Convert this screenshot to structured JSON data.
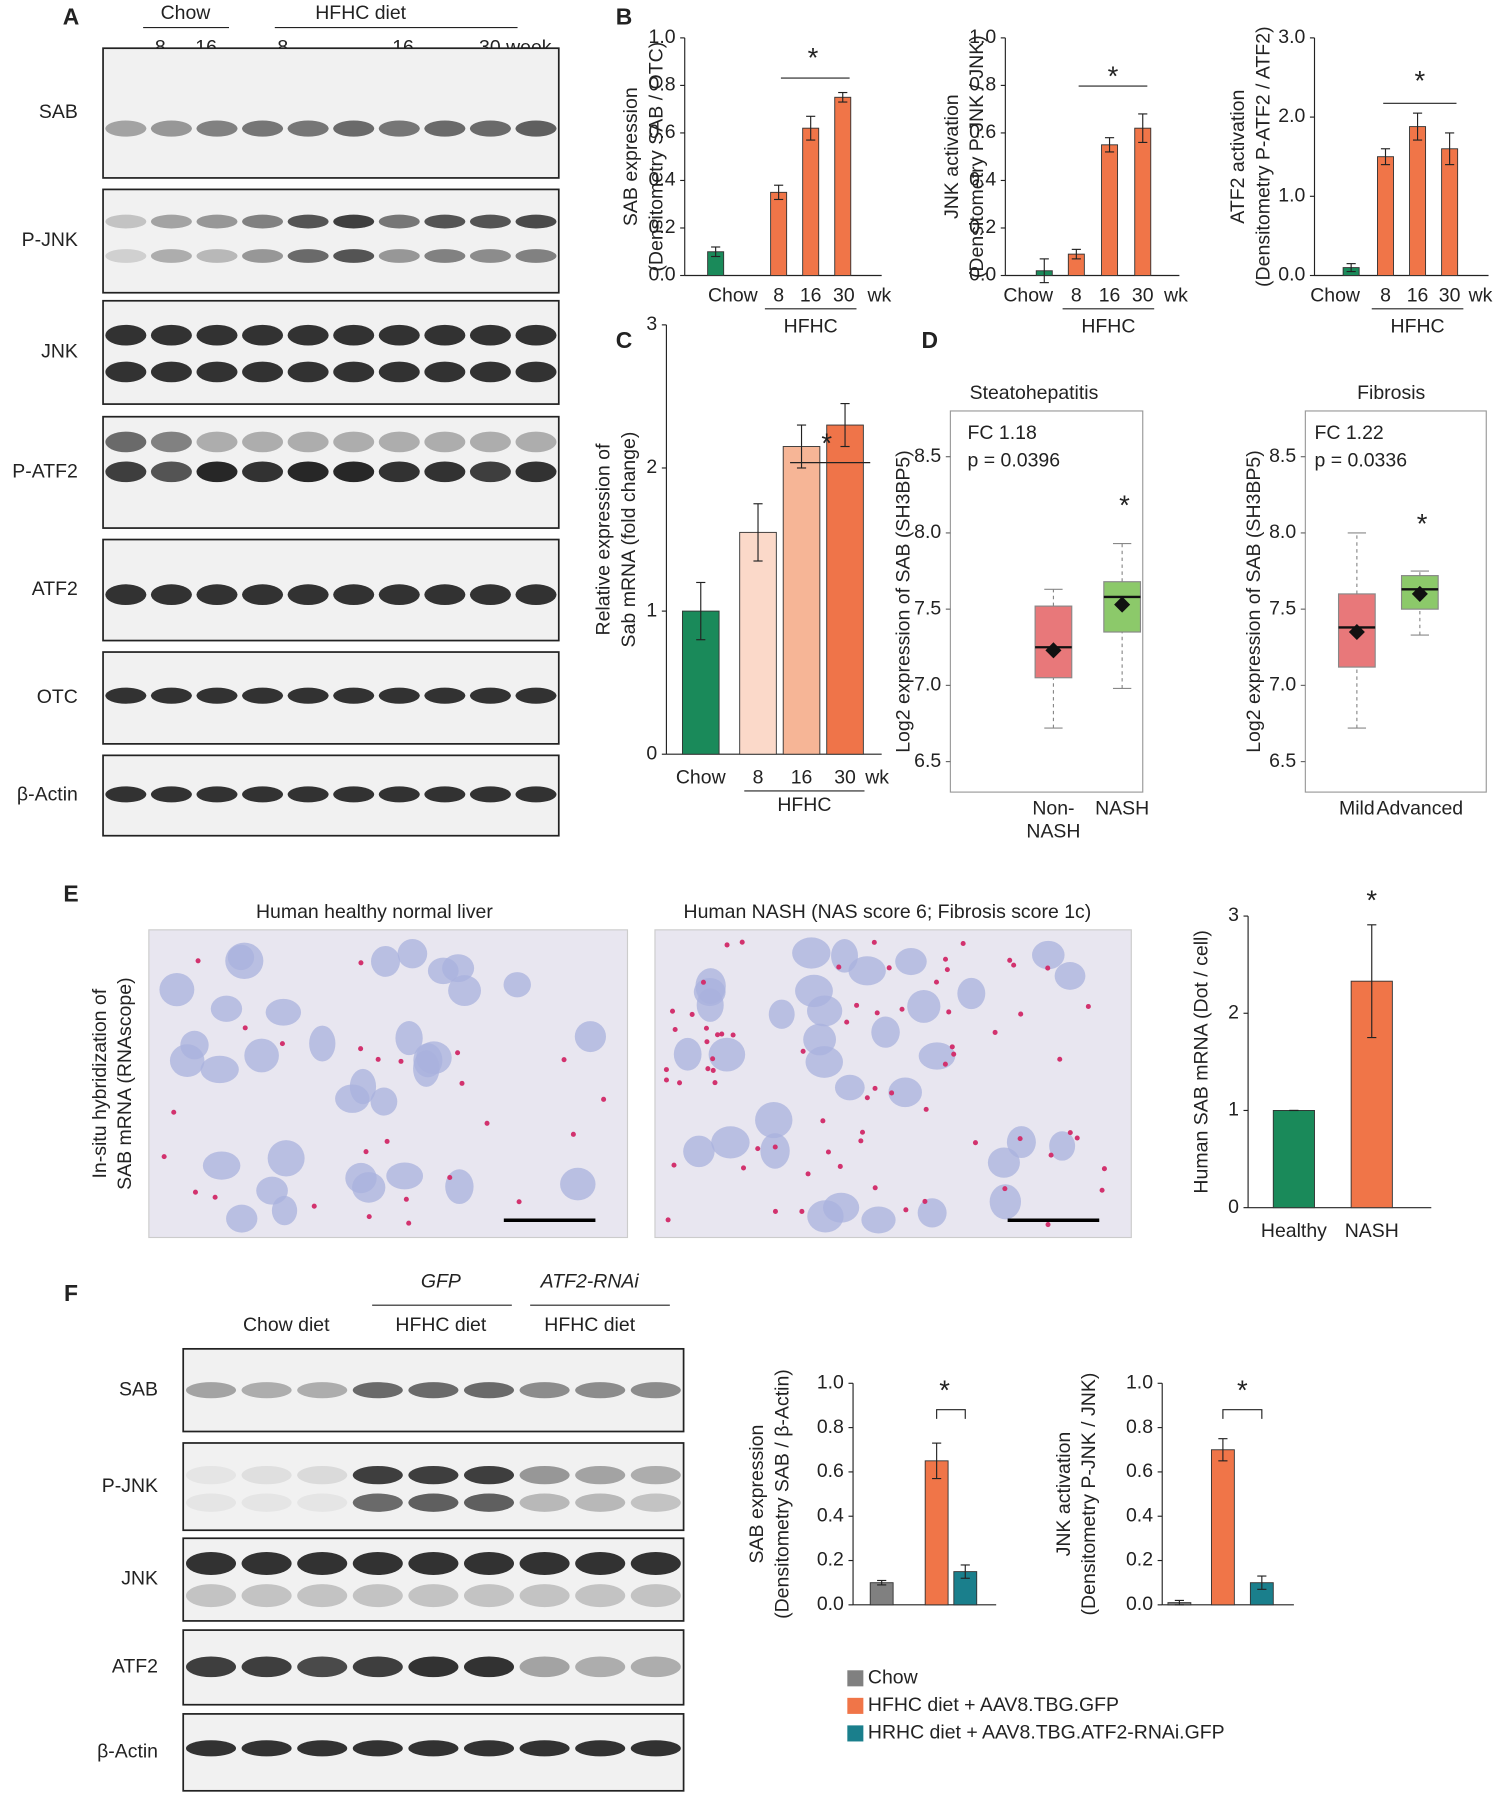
{
  "chart_data": [
    {
      "type": "bar",
      "ylabel": [
        "SAB expression",
        "(Densitometry SAB / OTC)"
      ],
      "categories": [
        "Chow",
        "8",
        "16",
        "30"
      ],
      "x_suffix": "wk",
      "group_label": "HFHC",
      "annotation": "*",
      "values": [
        0.1,
        0.35,
        0.62,
        0.75
      ],
      "errors": [
        0.02,
        0.03,
        0.05,
        0.02
      ],
      "colors": [
        "#1a8a5a",
        "#f07548",
        "#f07548",
        "#f07548"
      ],
      "ylim": [
        0,
        1
      ],
      "yticks": [
        {
          "value": 0,
          "label": "0.0"
        },
        0.2,
        0.4,
        0.6,
        0.8,
        {
          "value": 1,
          "label": "1.0"
        }
      ]
    },
    {
      "type": "bar",
      "ylabel": [
        "JNK activation",
        "(Densitometry P-JNK / JNK)"
      ],
      "categories": [
        "Chow",
        "8",
        "16",
        "30"
      ],
      "x_suffix": "wk",
      "group_label": "HFHC",
      "annotation": "*",
      "values": [
        0.02,
        0.09,
        0.55,
        0.62
      ],
      "errors": [
        0.05,
        0.02,
        0.03,
        0.06
      ],
      "colors": [
        "#1a8a5a",
        "#f07548",
        "#f07548",
        "#f07548"
      ],
      "ylim": [
        0,
        1
      ],
      "yticks": [
        {
          "value": 0,
          "label": "0.0"
        },
        0.2,
        0.4,
        0.6,
        0.8,
        {
          "value": 1,
          "label": "1.0"
        }
      ]
    },
    {
      "type": "bar",
      "ylabel": [
        "ATF2 activation",
        "(Densitometry P-ATF2 / ATF2)"
      ],
      "categories": [
        "Chow",
        "8",
        "16",
        "30"
      ],
      "x_suffix": "wk",
      "group_label": "HFHC",
      "annotation": "*",
      "values": [
        0.1,
        1.5,
        1.88,
        1.6
      ],
      "errors": [
        0.05,
        0.1,
        0.17,
        0.2
      ],
      "colors": [
        "#1a8a5a",
        "#f07548",
        "#f07548",
        "#f07548"
      ],
      "ylim": [
        0,
        3
      ],
      "yticks": [
        {
          "value": 0,
          "label": "0.0"
        },
        {
          "value": 1,
          "label": "1.0"
        },
        {
          "value": 2,
          "label": "2.0"
        },
        {
          "value": 3,
          "label": "3.0"
        }
      ]
    },
    {
      "type": "bar",
      "ylabel": [
        "Relative expression of",
        "Sab mRNA (fold change)"
      ],
      "categories": [
        "Chow",
        "8",
        "16",
        "30"
      ],
      "x_suffix": "wk",
      "group_label": "HFHC",
      "annotation": "*",
      "values": [
        1,
        1.55,
        2.15,
        2.3
      ],
      "errors": [
        0.2,
        0.2,
        0.15,
        0.15
      ],
      "colors": [
        "#1a8a5a",
        "#fbd9c9",
        "#f6b596",
        "#ef7449"
      ],
      "ylim": [
        0,
        3
      ],
      "yticks": [
        0,
        1,
        2,
        3
      ]
    },
    {
      "type": "box",
      "title": "Steatohepatitis",
      "annotations": [
        "FC 1.18",
        "p = 0.0396"
      ],
      "annotation": "*",
      "ylabel": "Log2 expression of SAB (SH3BP5)",
      "categories": [
        "Non-\nNASH",
        "NASH"
      ],
      "boxes": [
        {
          "whislo": 6.72,
          "q1": 7.05,
          "med": 7.25,
          "q3": 7.52,
          "whishi": 7.63,
          "mean": 7.23
        },
        {
          "whislo": 6.98,
          "q1": 7.35,
          "med": 7.58,
          "q3": 7.68,
          "whishi": 7.93,
          "mean": 7.53
        }
      ],
      "colors": [
        "#e8787a",
        "#8cc96a"
      ],
      "ylim": [
        6.3,
        8.8
      ],
      "yticks": [
        6.5,
        {
          "value": 7,
          "label": "7.0"
        },
        7.5,
        {
          "value": 8,
          "label": "8.0"
        },
        8.5
      ]
    },
    {
      "type": "box",
      "title": "Fibrosis",
      "annotations": [
        "FC 1.22",
        "p = 0.0336"
      ],
      "annotation": "*",
      "ylabel": "Log2 expression of SAB (SH3BP5)",
      "categories": [
        "Mild",
        "Advanced"
      ],
      "boxes": [
        {
          "whislo": 6.72,
          "q1": 7.12,
          "med": 7.38,
          "q3": 7.6,
          "whishi": 8.0,
          "mean": 7.35
        },
        {
          "whislo": 7.33,
          "q1": 7.5,
          "med": 7.63,
          "q3": 7.72,
          "whishi": 7.75,
          "mean": 7.6
        }
      ],
      "colors": [
        "#e8787a",
        "#8cc96a"
      ],
      "ylim": [
        6.3,
        8.8
      ],
      "yticks": [
        6.5,
        {
          "value": 7,
          "label": "7.0"
        },
        7.5,
        {
          "value": 8,
          "label": "8.0"
        },
        8.5
      ]
    },
    {
      "type": "bar",
      "ylabel": [
        "Human SAB mRNA (Dot / cell)"
      ],
      "categories": [
        "Healthy",
        "NASH"
      ],
      "annotation": "*",
      "values": [
        1,
        2.33
      ],
      "errors": [
        0,
        0.58
      ],
      "colors": [
        "#1a8a5a",
        "#f07548"
      ],
      "ylim": [
        0,
        3
      ],
      "yticks": [
        0,
        1,
        2,
        3
      ]
    },
    {
      "type": "bar",
      "ylabel": [
        "SAB expression",
        "(Densitometry SAB / β-Actin)"
      ],
      "annotation": "*",
      "values": [
        0.1,
        0.65,
        0.15
      ],
      "errors": [
        0.01,
        0.08,
        0.03
      ],
      "colors": [
        "#808080",
        "#f07548",
        "#1a7f8c"
      ],
      "legend": [
        "Chow",
        "HFHC diet + AAV8.TBG.GFP",
        "HRHC diet + AAV8.TBG.ATF2-RNAi.GFP"
      ],
      "ylim": [
        0,
        1
      ],
      "yticks": [
        {
          "value": 0,
          "label": "0.0"
        },
        0.2,
        0.4,
        0.6,
        0.8,
        {
          "value": 1,
          "label": "1.0"
        }
      ]
    },
    {
      "type": "bar",
      "ylabel": [
        "JNK activation",
        "(Densitometry P-JNK / JNK)"
      ],
      "annotation": "*",
      "values": [
        0.01,
        0.7,
        0.1
      ],
      "errors": [
        0.01,
        0.05,
        0.03
      ],
      "colors": [
        "#808080",
        "#f07548",
        "#1a7f8c"
      ],
      "ylim": [
        0,
        1
      ],
      "yticks": [
        {
          "value": 0,
          "label": "0.0"
        },
        0.2,
        0.4,
        0.6,
        0.8,
        {
          "value": 1,
          "label": "1.0"
        }
      ]
    }
  ],
  "panels": {
    "letters": [
      "A",
      "B",
      "C",
      "D",
      "E",
      "F"
    ],
    "blot_A": {
      "header": [
        "Chow",
        "HFHC diet"
      ],
      "weeks": [
        "8",
        "16",
        "8",
        "16",
        "30 week"
      ],
      "rows": [
        "SAB",
        "P-JNK",
        "JNK",
        "P-ATF2",
        "ATF2",
        "OTC",
        "β-Actin"
      ]
    },
    "images_E": {
      "titles": [
        "Human healthy normal liver",
        "Human NASH (NAS score 6; Fibrosis score 1c)"
      ],
      "side_label": [
        "In-situ hybridization of",
        "SAB mRNA (RNAscope)"
      ]
    },
    "blot_F": {
      "vectors": [
        "GFP",
        "ATF2-RNAi"
      ],
      "diets": [
        "Chow diet",
        "HFHC diet",
        "HFHC diet"
      ],
      "rows": [
        "SAB",
        "P-JNK",
        "JNK",
        "ATF2",
        "β-Actin"
      ]
    }
  }
}
